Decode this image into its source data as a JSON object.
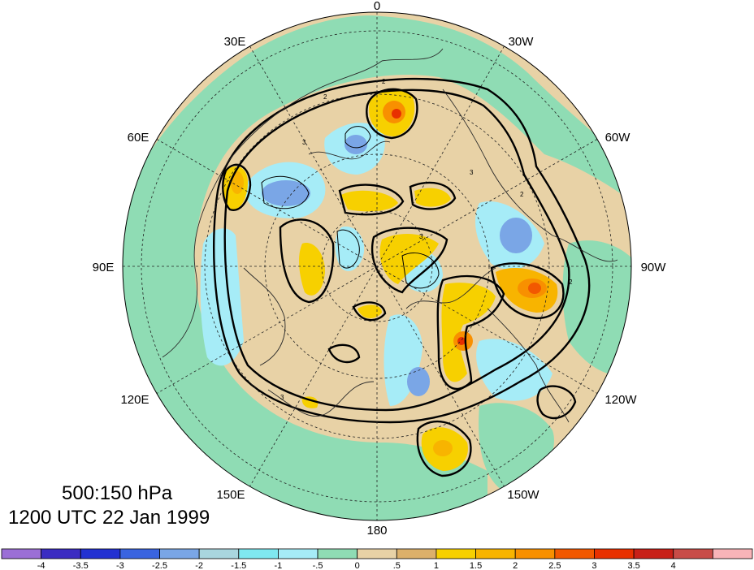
{
  "map": {
    "title_levels": "500:150 hPa",
    "title_time": "1200 UTC 22 Jan 1999",
    "longitude_labels": {
      "lon_0": "0",
      "lon_30e": "30E",
      "lon_30w": "30W",
      "lon_60e": "60E",
      "lon_60w": "60W",
      "lon_90e": "90E",
      "lon_90w": "90W",
      "lon_120e": "120E",
      "lon_120w": "120W",
      "lon_150e": "150E",
      "lon_150w": "150W",
      "lon_180": "180"
    },
    "contour_labels": [
      "2",
      "2",
      "2",
      "3",
      "3",
      "3",
      "2",
      "3"
    ]
  },
  "colorbar": {
    "colors": [
      "#9b6fd6",
      "#3b2cc2",
      "#2231d2",
      "#3a64e0",
      "#7aa6e6",
      "#a9d6df",
      "#7fe8f0",
      "#a6ecf7",
      "#8fdcb4",
      "#e8d2a6",
      "#dcb06a",
      "#f7d000",
      "#f8b400",
      "#f89000",
      "#f25800",
      "#e83000",
      "#c82018",
      "#c84c48",
      "#f8b4b8"
    ],
    "labels": [
      "-4",
      "-3.5",
      "-3",
      "-2.5",
      "-2",
      "-1.5",
      "-1",
      "-.5",
      "0",
      ".5",
      "1",
      "1.5",
      "2",
      "2.5",
      "3",
      "3.5",
      "4"
    ]
  },
  "palette": {
    "ocean_tan": "#e8d2a6",
    "green": "#8fdcb4",
    "light_cyan": "#a6ecf7",
    "cyan": "#7fe8f0",
    "blue": "#7aa6e6",
    "yellow": "#f7d000",
    "orange": "#f8b400",
    "dark_orange": "#f25800",
    "tan2": "#dcb06a"
  }
}
